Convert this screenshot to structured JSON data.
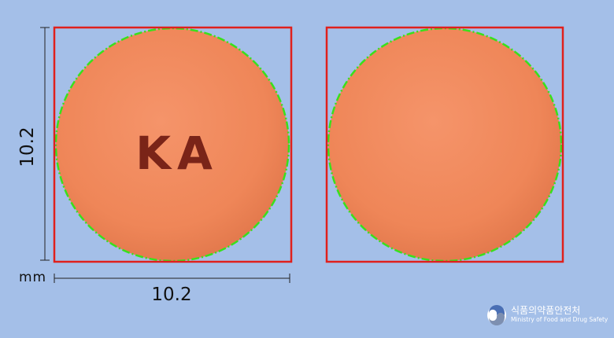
{
  "dimensions": {
    "height": "10.2",
    "width": "10.2",
    "unit": "mm"
  },
  "pills": [
    {
      "side": "front",
      "imprint": "KA"
    },
    {
      "side": "back",
      "imprint": ""
    }
  ],
  "logo": {
    "korean": "식품의약품안전처",
    "english": "Ministry of Food and Drug Safety"
  },
  "colors": {
    "background": "#a4bfe8",
    "pill": "#f08a5c",
    "frame": "#e0201c",
    "outline": "#39e01c",
    "imprint": "#7a2418"
  }
}
